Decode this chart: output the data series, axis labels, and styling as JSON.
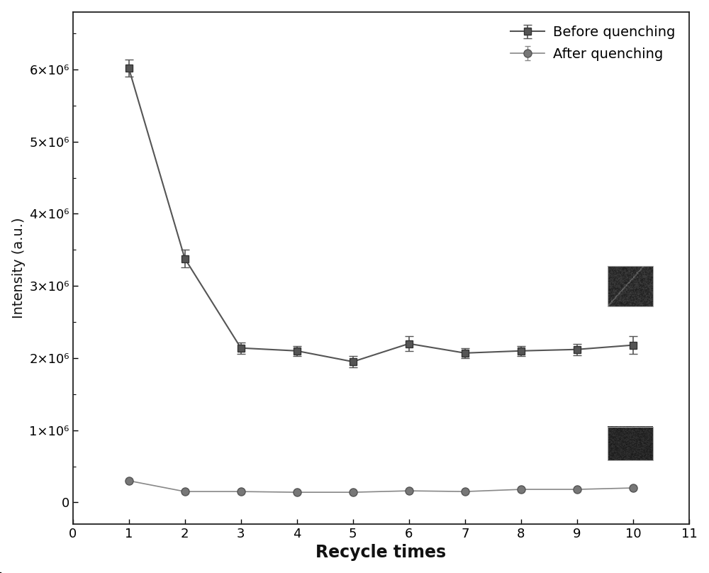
{
  "before_x": [
    1,
    2,
    3,
    4,
    5,
    6,
    7,
    8,
    9,
    10
  ],
  "before_y": [
    6020000.0,
    3380000.0,
    2140000.0,
    2100000.0,
    1950000.0,
    2200000.0,
    2070000.0,
    2100000.0,
    2120000.0,
    2180000.0
  ],
  "before_yerr": [
    120000.0,
    120000.0,
    80000.0,
    70000.0,
    80000.0,
    100000.0,
    70000.0,
    70000.0,
    80000.0,
    120000.0
  ],
  "after_x": [
    1,
    2,
    3,
    4,
    5,
    6,
    7,
    8,
    9,
    10
  ],
  "after_y": [
    300000.0,
    150000.0,
    150000.0,
    140000.0,
    140000.0,
    160000.0,
    150000.0,
    180000.0,
    180000.0,
    200000.0
  ],
  "after_yerr": [
    20000.0,
    10000.0,
    10000.0,
    10000.0,
    10000.0,
    10000.0,
    10000.0,
    10000.0,
    10000.0,
    10000.0
  ],
  "line_color": "#555555",
  "xlabel": "Recycle times",
  "ylabel": "Intensity (a.u.)",
  "legend_before": "Before quenching",
  "legend_after": "After quenching",
  "xlim": [
    0,
    11
  ],
  "ylim": [
    -300000.0,
    6800000.0
  ],
  "ytick_labels": [
    "0",
    "1×10⁶",
    "2×10⁶",
    "3×10⁶",
    "4×10⁶",
    "5×10⁶",
    "6×10⁶"
  ],
  "ytick_values": [
    0,
    1000000.0,
    2000000.0,
    3000000.0,
    4000000.0,
    5000000.0,
    6000000.0
  ],
  "xticks": [
    0,
    1,
    2,
    3,
    4,
    5,
    6,
    7,
    8,
    9,
    10,
    11
  ],
  "xlabel_fontsize": 17,
  "ylabel_fontsize": 14,
  "tick_fontsize": 13,
  "legend_fontsize": 14,
  "background_color": "#ffffff"
}
